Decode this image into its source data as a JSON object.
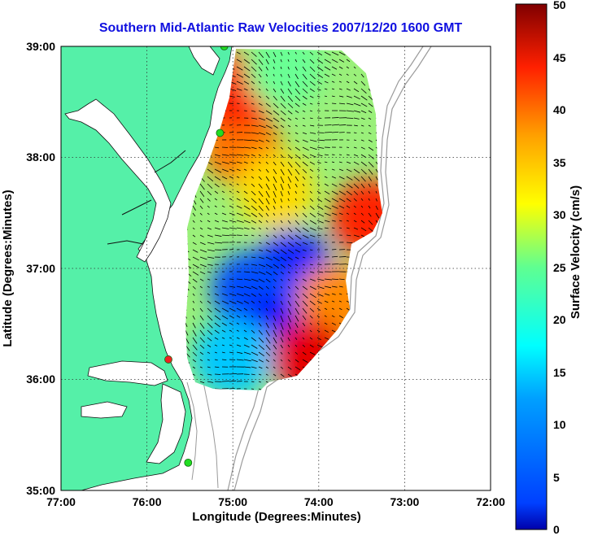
{
  "title": "Southern Mid-Atlantic Raw Velocities 2007/12/20 1600 GMT",
  "xlabel": "Longitude (Degrees:Minutes)",
  "ylabel": "Latitude (Degrees:Minutes)",
  "colorbar_label": "Surface Velocity (cm/s)",
  "x_ticks": [
    "77:00",
    "76:00",
    "75:00",
    "74:00",
    "73:00",
    "72:00"
  ],
  "y_ticks": [
    "35:00",
    "36:00",
    "37:00",
    "38:00",
    "39:00"
  ],
  "colorbar_ticks": [
    "0",
    "5",
    "10",
    "15",
    "20",
    "25",
    "30",
    "35",
    "40",
    "45",
    "50"
  ],
  "colors": {
    "title": "#1010e0",
    "land": "#55f0a8",
    "grid": "#333333",
    "bathymetry": "#9a9a9a",
    "station_green": "#22dd22",
    "station_red": "#ee2222"
  },
  "colormap": "jet",
  "map": {
    "lon_range": [
      -77,
      -72
    ],
    "lat_range": [
      35,
      39
    ],
    "velocity_range_cms": [
      0,
      50
    ],
    "stations": [
      {
        "lon": -75.1,
        "lat": 39.0,
        "color": "green"
      },
      {
        "lon": -75.15,
        "lat": 38.22,
        "color": "green"
      },
      {
        "lon": -75.75,
        "lat": 36.18,
        "color": "red"
      },
      {
        "lon": -75.52,
        "lat": 35.25,
        "color": "green"
      }
    ],
    "velocity_hotspots": [
      {
        "lon": -74.9,
        "lat": 38.1,
        "speed": 38
      },
      {
        "lon": -75.0,
        "lat": 38.6,
        "speed": 42
      },
      {
        "lon": -74.5,
        "lat": 37.7,
        "speed": 33
      },
      {
        "lon": -73.4,
        "lat": 37.45,
        "speed": 42
      },
      {
        "lon": -74.3,
        "lat": 37.0,
        "speed": 8
      },
      {
        "lon": -74.8,
        "lat": 36.8,
        "speed": 10
      },
      {
        "lon": -74.6,
        "lat": 36.4,
        "speed": 6
      },
      {
        "lon": -73.8,
        "lat": 36.7,
        "speed": 37
      },
      {
        "lon": -74.1,
        "lat": 36.2,
        "speed": 45
      },
      {
        "lon": -74.4,
        "lat": 38.8,
        "speed": 24
      },
      {
        "lon": -75.0,
        "lat": 36.2,
        "speed": 16
      }
    ]
  }
}
